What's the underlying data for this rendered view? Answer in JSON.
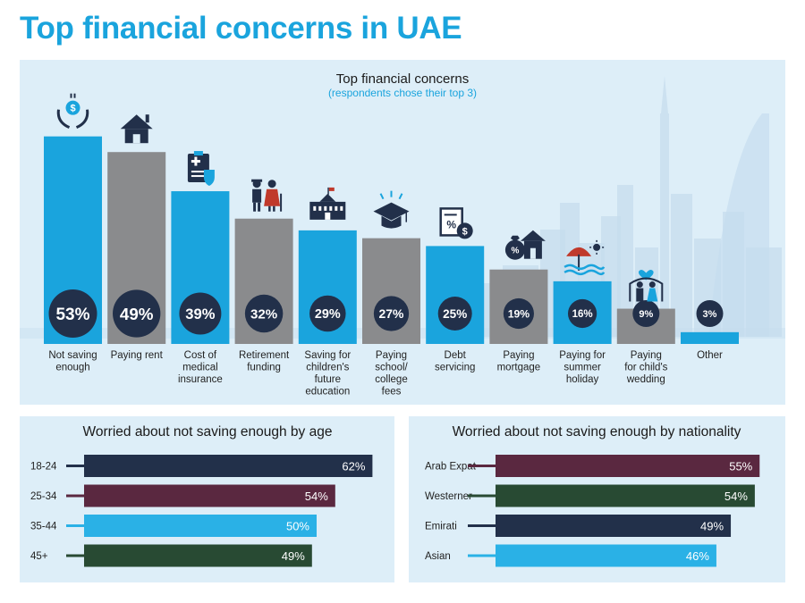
{
  "page_title": "Top financial concerns in UAE",
  "colors": {
    "accent_blue": "#1aa4dd",
    "grey": "#8a8b8d",
    "navy": "#22304a",
    "maroon": "#5a2840",
    "green": "#284a33",
    "light_blue": "#2ab1e6",
    "panel_bg": "#ddeef8",
    "skyline": "#c5dcee"
  },
  "chart_data": [
    {
      "type": "bar",
      "title": "Top financial concerns",
      "subtitle": "(respondents chose their top 3)",
      "unit": "%",
      "ylim": [
        0,
        60
      ],
      "grid": false,
      "categories": [
        [
          "Not saving",
          "enough"
        ],
        [
          "Paying rent"
        ],
        [
          "Cost of",
          "medical",
          "insurance"
        ],
        [
          "Retirement",
          "funding"
        ],
        [
          "Saving for",
          "children's",
          "future",
          "education"
        ],
        [
          "Paying",
          "school/",
          "college",
          "fees"
        ],
        [
          "Debt",
          "servicing"
        ],
        [
          "Paying",
          "mortgage"
        ],
        [
          "Paying for",
          "summer",
          "holiday"
        ],
        [
          "Paying",
          "for child's",
          "wedding"
        ],
        [
          "Other"
        ]
      ],
      "values": [
        53,
        49,
        39,
        32,
        29,
        27,
        25,
        19,
        16,
        9,
        3
      ],
      "value_labels": [
        "53%",
        "49%",
        "39%",
        "32%",
        "29%",
        "27%",
        "25%",
        "19%",
        "16%",
        "9%",
        "3%"
      ],
      "bar_colors": [
        "#1aa4dd",
        "#8a8b8d",
        "#1aa4dd",
        "#8a8b8d",
        "#1aa4dd",
        "#8a8b8d",
        "#1aa4dd",
        "#8a8b8d",
        "#1aa4dd",
        "#8a8b8d",
        "#1aa4dd"
      ],
      "icons": [
        "money-hands-icon",
        "house-icon",
        "medical-clipboard-icon",
        "elderly-couple-icon",
        "school-building-icon",
        "graduation-cap-icon",
        "debt-document-icon",
        "mortgage-house-icon",
        "beach-umbrella-icon",
        "wedding-couple-icon",
        ""
      ]
    },
    {
      "type": "bar",
      "orientation": "horizontal",
      "title": "Worried about not saving enough by age",
      "unit": "%",
      "xlim": [
        0,
        65
      ],
      "categories": [
        "18-24",
        "25-34",
        "35-44",
        "45+"
      ],
      "values": [
        62,
        54,
        50,
        49
      ],
      "value_labels": [
        "62%",
        "54%",
        "50%",
        "49%"
      ],
      "bar_colors": [
        "#22304a",
        "#5a2840",
        "#2ab1e6",
        "#284a33"
      ]
    },
    {
      "type": "bar",
      "orientation": "horizontal",
      "title": "Worried about not saving enough by nationality",
      "unit": "%",
      "xlim": [
        0,
        57
      ],
      "categories": [
        "Arab Expat",
        "Westerner",
        "Emirati",
        "Asian"
      ],
      "values": [
        55,
        54,
        49,
        46
      ],
      "value_labels": [
        "55%",
        "54%",
        "49%",
        "46%"
      ],
      "bar_colors": [
        "#5a2840",
        "#284a33",
        "#22304a",
        "#2ab1e6"
      ]
    }
  ]
}
